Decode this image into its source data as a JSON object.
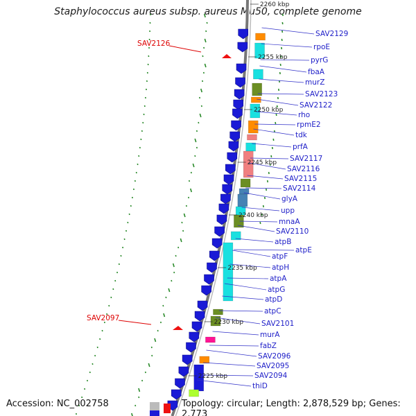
{
  "title": "Staphylococcus aureus subsp. aureus Mu50, complete genome",
  "accession_label": "Accession: NC_002758",
  "summary": "Topology: circular; Length: 2,878,529 bp; Genes: 2,773",
  "scale_labels": [
    "2260 kbp",
    "2255 kbp",
    "2250 kbp",
    "2245 kbp",
    "2240 kbp",
    "2235 kbp",
    "2230 kbp",
    "2225 kbp"
  ],
  "gene_labels": [
    "SAV2129",
    "rpoE",
    "pyrG",
    "fbaA",
    "murZ",
    "SAV2123",
    "SAV2122",
    "rho",
    "rpmE2",
    "tdk",
    "prfA",
    "SAV2117",
    "SAV2116",
    "SAV2115",
    "SAV2114",
    "glyA",
    "upp",
    "mnaA",
    "SAV2110",
    "atpB",
    "atpE",
    "atpF",
    "atpH",
    "atpA",
    "atpG",
    "atpD",
    "atpC",
    "SAV2101",
    "murA",
    "fabZ",
    "SAV2096",
    "SAV2095",
    "SAV2094",
    "thiD"
  ],
  "red_labels": [
    "SAV2126",
    "SAV2097"
  ],
  "colors": {
    "gene_blue": "#1a1ad6",
    "label_blue": "#1d1dc8",
    "label_red": "#dd0000",
    "backbone": "#888888",
    "gc_green": "#2a8a2a",
    "cyan": "#19e0e0",
    "orange": "#ff8c00",
    "olive": "#6b8e23",
    "salmon": "#f08080",
    "steel": "#4682b4",
    "magenta": "#ff1493",
    "lime": "#adff2f"
  }
}
